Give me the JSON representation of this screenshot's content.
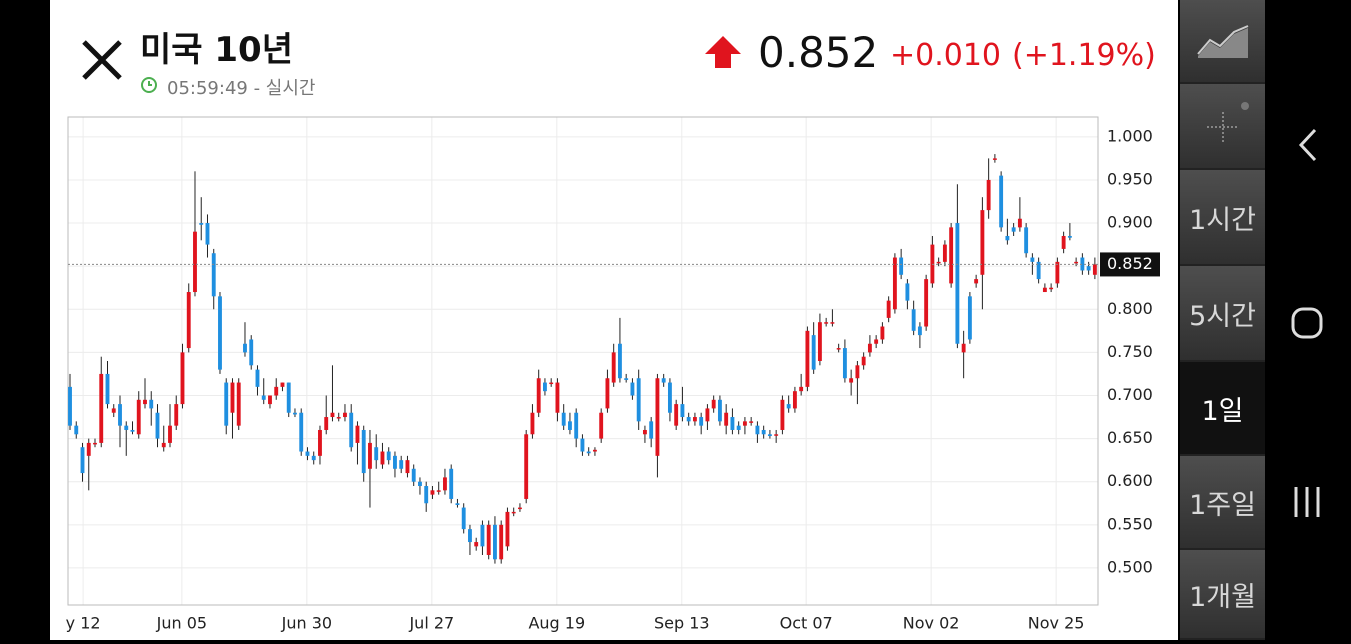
{
  "header": {
    "title": "미국 10년",
    "time": "05:59:49 - 실시간",
    "change": "+0.010",
    "change_pct": "(+1.19%)"
  },
  "sidebar": {
    "buttons": [
      "1시간",
      "5시간",
      "1일",
      "1주일",
      "1개월"
    ],
    "selected": 2
  },
  "chart_data": {
    "type": "candlestick",
    "up_color": "#e0141e",
    "down_color": "#1f8fe0",
    "last_value": 0.852,
    "open": [
      0.71,
      0.665,
      0.64,
      0.63,
      0.645,
      0.645,
      0.725,
      0.68,
      0.69,
      0.665,
      0.66,
      0.655,
      0.69,
      0.695,
      0.68,
      0.64,
      0.645,
      0.665,
      0.69,
      0.755,
      0.82,
      0.9,
      0.9,
      0.865,
      0.815,
      0.715,
      0.68,
      0.665,
      0.76,
      0.765,
      0.73,
      0.7,
      0.69,
      0.7,
      0.71,
      0.715,
      0.68,
      0.68,
      0.635,
      0.63,
      0.63,
      0.66,
      0.675,
      0.675,
      0.675,
      0.68,
      0.645,
      0.66,
      0.615,
      0.64,
      0.62,
      0.635,
      0.63,
      0.625,
      0.61,
      0.615,
      0.6,
      0.595,
      0.585,
      0.59,
      0.59,
      0.615,
      0.575,
      0.57,
      0.545,
      0.525,
      0.55,
      0.515,
      0.55,
      0.51,
      0.525,
      0.565,
      0.57,
      0.58,
      0.655,
      0.68,
      0.715,
      0.715,
      0.68,
      0.68,
      0.67,
      0.68,
      0.65,
      0.635,
      0.635,
      0.65,
      0.685,
      0.715,
      0.76,
      0.72,
      0.715,
      0.72,
      0.655,
      0.67,
      0.63,
      0.72,
      0.715,
      0.665,
      0.69,
      0.675,
      0.67,
      0.675,
      0.67,
      0.685,
      0.695,
      0.665,
      0.675,
      0.665,
      0.665,
      0.67,
      0.665,
      0.66,
      0.655,
      0.655,
      0.66,
      0.69,
      0.685,
      0.705,
      0.71,
      0.77,
      0.74,
      0.785,
      0.785,
      0.755,
      0.755,
      0.715,
      0.72,
      0.735,
      0.75,
      0.76,
      0.765,
      0.79,
      0.8,
      0.86,
      0.83,
      0.8,
      0.78,
      0.78,
      0.83,
      0.855,
      0.855,
      0.83,
      0.9,
      0.75,
      0.815,
      0.83,
      0.84,
      0.915,
      0.975,
      0.955,
      0.885,
      0.895,
      0.895,
      0.895,
      0.86,
      0.855,
      0.82,
      0.825,
      0.83,
      0.87,
      0.885,
      0.855,
      0.86,
      0.85,
      0.84
    ],
    "high": [
      0.725,
      0.67,
      0.645,
      0.65,
      0.65,
      0.745,
      0.74,
      0.69,
      0.7,
      0.67,
      0.67,
      0.705,
      0.72,
      0.705,
      0.69,
      0.665,
      0.69,
      0.7,
      0.76,
      0.83,
      0.96,
      0.93,
      0.91,
      0.87,
      0.82,
      0.72,
      0.72,
      0.72,
      0.785,
      0.77,
      0.735,
      0.72,
      0.7,
      0.72,
      0.715,
      0.715,
      0.685,
      0.685,
      0.64,
      0.635,
      0.665,
      0.7,
      0.735,
      0.68,
      0.69,
      0.69,
      0.67,
      0.665,
      0.66,
      0.655,
      0.645,
      0.64,
      0.635,
      0.63,
      0.63,
      0.62,
      0.605,
      0.6,
      0.595,
      0.6,
      0.615,
      0.62,
      0.58,
      0.575,
      0.55,
      0.535,
      0.555,
      0.555,
      0.56,
      0.555,
      0.57,
      0.57,
      0.575,
      0.66,
      0.69,
      0.73,
      0.72,
      0.72,
      0.72,
      0.69,
      0.68,
      0.685,
      0.655,
      0.64,
      0.64,
      0.685,
      0.73,
      0.76,
      0.79,
      0.725,
      0.72,
      0.73,
      0.665,
      0.675,
      0.725,
      0.725,
      0.72,
      0.695,
      0.71,
      0.68,
      0.68,
      0.68,
      0.69,
      0.7,
      0.7,
      0.69,
      0.685,
      0.67,
      0.675,
      0.675,
      0.67,
      0.665,
      0.66,
      0.66,
      0.7,
      0.7,
      0.71,
      0.725,
      0.78,
      0.785,
      0.795,
      0.79,
      0.8,
      0.76,
      0.765,
      0.73,
      0.74,
      0.75,
      0.77,
      0.77,
      0.785,
      0.815,
      0.865,
      0.87,
      0.835,
      0.81,
      0.785,
      0.84,
      0.885,
      0.86,
      0.88,
      0.9,
      0.945,
      0.775,
      0.82,
      0.84,
      0.93,
      0.975,
      0.98,
      0.96,
      0.905,
      0.9,
      0.93,
      0.9,
      0.865,
      0.86,
      0.83,
      0.83,
      0.86,
      0.89,
      0.9,
      0.86,
      0.865,
      0.855,
      0.86
    ],
    "low": [
      0.66,
      0.65,
      0.6,
      0.59,
      0.64,
      0.64,
      0.685,
      0.675,
      0.64,
      0.63,
      0.655,
      0.65,
      0.685,
      0.665,
      0.64,
      0.635,
      0.64,
      0.66,
      0.685,
      0.75,
      0.815,
      0.88,
      0.86,
      0.8,
      0.725,
      0.655,
      0.65,
      0.66,
      0.745,
      0.73,
      0.7,
      0.69,
      0.685,
      0.695,
      0.705,
      0.675,
      0.675,
      0.63,
      0.625,
      0.62,
      0.62,
      0.655,
      0.67,
      0.67,
      0.67,
      0.635,
      0.62,
      0.6,
      0.57,
      0.615,
      0.615,
      0.62,
      0.605,
      0.61,
      0.605,
      0.595,
      0.585,
      0.565,
      0.58,
      0.585,
      0.585,
      0.575,
      0.57,
      0.54,
      0.515,
      0.52,
      0.515,
      0.51,
      0.505,
      0.505,
      0.52,
      0.56,
      0.565,
      0.575,
      0.65,
      0.675,
      0.7,
      0.71,
      0.67,
      0.66,
      0.655,
      0.64,
      0.63,
      0.63,
      0.63,
      0.645,
      0.68,
      0.71,
      0.715,
      0.715,
      0.695,
      0.66,
      0.645,
      0.64,
      0.605,
      0.71,
      0.67,
      0.66,
      0.67,
      0.665,
      0.665,
      0.655,
      0.66,
      0.68,
      0.665,
      0.655,
      0.655,
      0.655,
      0.655,
      0.665,
      0.645,
      0.65,
      0.65,
      0.645,
      0.655,
      0.68,
      0.68,
      0.7,
      0.705,
      0.725,
      0.735,
      0.78,
      0.78,
      0.75,
      0.715,
      0.7,
      0.69,
      0.73,
      0.745,
      0.755,
      0.76,
      0.785,
      0.795,
      0.835,
      0.8,
      0.77,
      0.755,
      0.775,
      0.825,
      0.85,
      0.85,
      0.825,
      0.755,
      0.72,
      0.76,
      0.825,
      0.8,
      0.905,
      0.97,
      0.89,
      0.875,
      0.885,
      0.89,
      0.86,
      0.84,
      0.83,
      0.82,
      0.82,
      0.825,
      0.865,
      0.88,
      0.85,
      0.84,
      0.84,
      0.835
    ],
    "close": [
      0.665,
      0.655,
      0.61,
      0.645,
      0.645,
      0.725,
      0.69,
      0.685,
      0.665,
      0.66,
      0.658,
      0.695,
      0.695,
      0.685,
      0.65,
      0.645,
      0.665,
      0.69,
      0.75,
      0.82,
      0.89,
      0.898,
      0.875,
      0.815,
      0.73,
      0.665,
      0.715,
      0.715,
      0.75,
      0.735,
      0.71,
      0.695,
      0.7,
      0.71,
      0.715,
      0.68,
      0.678,
      0.635,
      0.63,
      0.625,
      0.66,
      0.675,
      0.68,
      0.675,
      0.68,
      0.64,
      0.665,
      0.61,
      0.645,
      0.625,
      0.635,
      0.625,
      0.615,
      0.615,
      0.625,
      0.6,
      0.595,
      0.575,
      0.59,
      0.59,
      0.605,
      0.58,
      0.573,
      0.545,
      0.53,
      0.53,
      0.525,
      0.55,
      0.51,
      0.55,
      0.565,
      0.565,
      0.57,
      0.655,
      0.68,
      0.72,
      0.705,
      0.715,
      0.715,
      0.665,
      0.66,
      0.65,
      0.635,
      0.633,
      0.637,
      0.68,
      0.72,
      0.75,
      0.72,
      0.718,
      0.7,
      0.67,
      0.66,
      0.65,
      0.72,
      0.715,
      0.68,
      0.69,
      0.675,
      0.67,
      0.675,
      0.665,
      0.685,
      0.695,
      0.67,
      0.68,
      0.66,
      0.66,
      0.67,
      0.67,
      0.655,
      0.655,
      0.653,
      0.655,
      0.695,
      0.685,
      0.705,
      0.71,
      0.775,
      0.73,
      0.785,
      0.785,
      0.785,
      0.755,
      0.72,
      0.72,
      0.735,
      0.745,
      0.76,
      0.765,
      0.78,
      0.81,
      0.86,
      0.84,
      0.81,
      0.775,
      0.77,
      0.835,
      0.875,
      0.855,
      0.875,
      0.895,
      0.76,
      0.76,
      0.765,
      0.835,
      0.915,
      0.95,
      0.975,
      0.895,
      0.88,
      0.89,
      0.905,
      0.865,
      0.855,
      0.835,
      0.825,
      0.825,
      0.855,
      0.885,
      0.883,
      0.855,
      0.845,
      0.845,
      0.852
    ],
    "xlim": [
      -0.32,
      164.5
    ],
    "xticks": [
      {
        "value": 2.1,
        "label": "y 12"
      },
      {
        "value": 17.9,
        "label": "Jun 05"
      },
      {
        "value": 37.9,
        "label": "Jun 30"
      },
      {
        "value": 57.9,
        "label": "Jul 27"
      },
      {
        "value": 77.9,
        "label": "Aug 19"
      },
      {
        "value": 97.9,
        "label": "Sep 13"
      },
      {
        "value": 117.8,
        "label": "Oct 07"
      },
      {
        "value": 137.8,
        "label": "Nov 02"
      },
      {
        "value": 157.8,
        "label": "Nov 25"
      }
    ],
    "ylim": [
      0.457,
      1.023
    ],
    "yticks": [
      {
        "value": 1,
        "label": "1.000"
      },
      {
        "value": 0.95,
        "label": "0.950"
      },
      {
        "value": 0.9,
        "label": "0.900"
      },
      {
        "value": 0.85,
        "label": "0.850"
      },
      {
        "value": 0.8,
        "label": "0.800"
      },
      {
        "value": 0.75,
        "label": "0.750"
      },
      {
        "value": 0.7,
        "label": "0.700"
      },
      {
        "value": 0.65,
        "label": "0.650"
      },
      {
        "value": 0.6,
        "label": "0.600"
      },
      {
        "value": 0.55,
        "label": "0.550"
      },
      {
        "value": 0.5,
        "label": "0.500"
      }
    ],
    "grid": true
  }
}
